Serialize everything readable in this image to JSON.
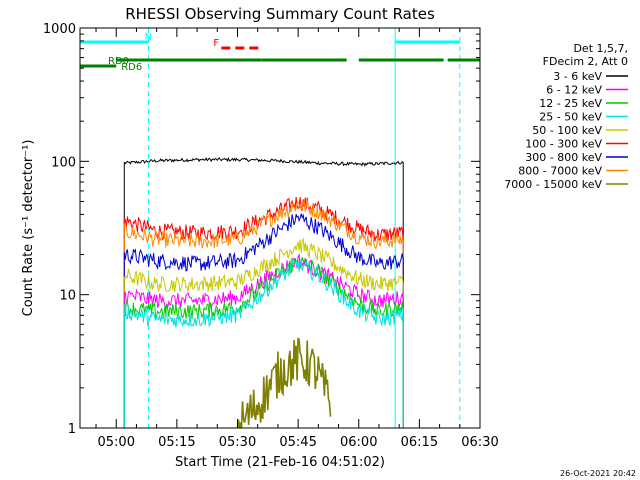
{
  "chart_data": {
    "type": "line",
    "title": "RHESSI Observing Summary Count Rates",
    "xlabel": "Start Time (21-Feb-16 04:51:02)",
    "ylabel": "Count Rate (s⁻¹ detector⁻¹)",
    "y_scale": "log",
    "ylim": [
      1,
      1000
    ],
    "xlim": [
      "04:51:02",
      "06:30"
    ],
    "x_ticks": [
      "05:00",
      "05:15",
      "05:30",
      "05:45",
      "06:00",
      "06:15",
      "06:30"
    ],
    "y_ticks": [
      "1",
      "10",
      "100",
      "1000"
    ],
    "grid": false,
    "legend_position": "top-right",
    "legend_header": [
      "Det 1,5,7,",
      "FDecim 2, Att 0"
    ],
    "timestamp": "26-Oct-2021 20:42",
    "data_window": [
      "05:02",
      "06:11"
    ],
    "series": [
      {
        "name": "3 - 6 keV",
        "color": "#000000",
        "x": [
          "05:02",
          "05:10",
          "05:20",
          "05:30",
          "05:40",
          "05:50",
          "06:00",
          "06:05",
          "06:11"
        ],
        "values": [
          97,
          101,
          103,
          103,
          101,
          97,
          95,
          96,
          98
        ]
      },
      {
        "name": "6 - 12 keV",
        "color": "#ff00ff",
        "x": [
          "05:02",
          "05:10",
          "05:20",
          "05:30",
          "05:40",
          "05:45",
          "05:50",
          "06:00",
          "06:05",
          "06:11"
        ],
        "values": [
          10,
          9,
          9,
          9.5,
          15,
          18,
          15,
          10,
          9,
          9.5
        ]
      },
      {
        "name": "12 - 25 keV",
        "color": "#00cc00",
        "x": [
          "05:02",
          "05:10",
          "05:20",
          "05:30",
          "05:40",
          "05:45",
          "05:50",
          "06:00",
          "06:05",
          "06:11"
        ],
        "values": [
          8,
          7.5,
          7.5,
          8,
          14,
          18,
          15,
          8.5,
          7.5,
          8
        ]
      },
      {
        "name": "25 - 50 keV",
        "color": "#00e0e0",
        "x": [
          "05:02",
          "05:10",
          "05:20",
          "05:30",
          "05:40",
          "05:45",
          "05:50",
          "06:00",
          "06:05",
          "06:11"
        ],
        "values": [
          7.5,
          6.5,
          6.5,
          7,
          13,
          17,
          14,
          7.5,
          6.5,
          7
        ]
      },
      {
        "name": "50 - 100 keV",
        "color": "#c8c800",
        "x": [
          "05:02",
          "05:10",
          "05:20",
          "05:30",
          "05:40",
          "05:45",
          "05:50",
          "06:00",
          "06:05",
          "06:11"
        ],
        "values": [
          14,
          12,
          12,
          12.5,
          19,
          24,
          20,
          13,
          12,
          12.5
        ]
      },
      {
        "name": "100 - 300 keV",
        "color": "#ff0000",
        "x": [
          "05:02",
          "05:10",
          "05:20",
          "05:30",
          "05:40",
          "05:45",
          "05:50",
          "06:00",
          "06:05",
          "06:11"
        ],
        "values": [
          36,
          30,
          29,
          30,
          42,
          50,
          44,
          31,
          28,
          29
        ]
      },
      {
        "name": "300 - 800 keV",
        "color": "#0000cc",
        "x": [
          "05:02",
          "05:10",
          "05:20",
          "05:30",
          "05:40",
          "05:45",
          "05:50",
          "06:00",
          "06:05",
          "06:11"
        ],
        "values": [
          20,
          18,
          17,
          18,
          30,
          38,
          32,
          19,
          17,
          18
        ]
      },
      {
        "name": "800 - 7000 keV",
        "color": "#ff8800",
        "x": [
          "05:02",
          "05:10",
          "05:20",
          "05:30",
          "05:40",
          "05:45",
          "05:50",
          "06:00",
          "06:05",
          "06:11"
        ],
        "values": [
          30,
          26,
          25,
          26,
          40,
          48,
          42,
          27,
          25,
          26
        ]
      },
      {
        "name": "7000 - 15000 keV",
        "color": "#808000",
        "x": [
          "05:30",
          "05:35",
          "05:40",
          "05:43",
          "05:45",
          "05:48",
          "05:50",
          "05:53"
        ],
        "values": [
          1,
          1.5,
          2.5,
          3,
          3.2,
          3,
          2.5,
          1.5
        ]
      }
    ],
    "flags": [
      {
        "label": "N",
        "color": "#00ffff",
        "intervals": [
          [
            "04:51:02",
            "05:08"
          ],
          [
            "06:09",
            "06:25"
          ]
        ]
      },
      {
        "label": "F",
        "color": "#ff0000",
        "intervals": [
          [
            "05:26",
            "05:36"
          ]
        ]
      },
      {
        "label": "RD0",
        "color": "#008000",
        "intervals": [
          [
            "04:51:02",
            "05:00"
          ]
        ]
      },
      {
        "label": "RD6",
        "color": "#008000",
        "intervals": [
          [
            "05:00",
            "05:36"
          ],
          [
            "05:36",
            "05:57"
          ],
          [
            "06:00",
            "06:21"
          ],
          [
            "06:22",
            "06:30"
          ]
        ]
      }
    ],
    "vertical_markers": [
      {
        "time": "05:08",
        "color": "#00ffff",
        "style": "dashed"
      },
      {
        "time": "06:09",
        "color": "#00ffff",
        "style": "solid"
      },
      {
        "time": "06:25",
        "color": "#00ffff",
        "style": "dashed"
      }
    ]
  }
}
